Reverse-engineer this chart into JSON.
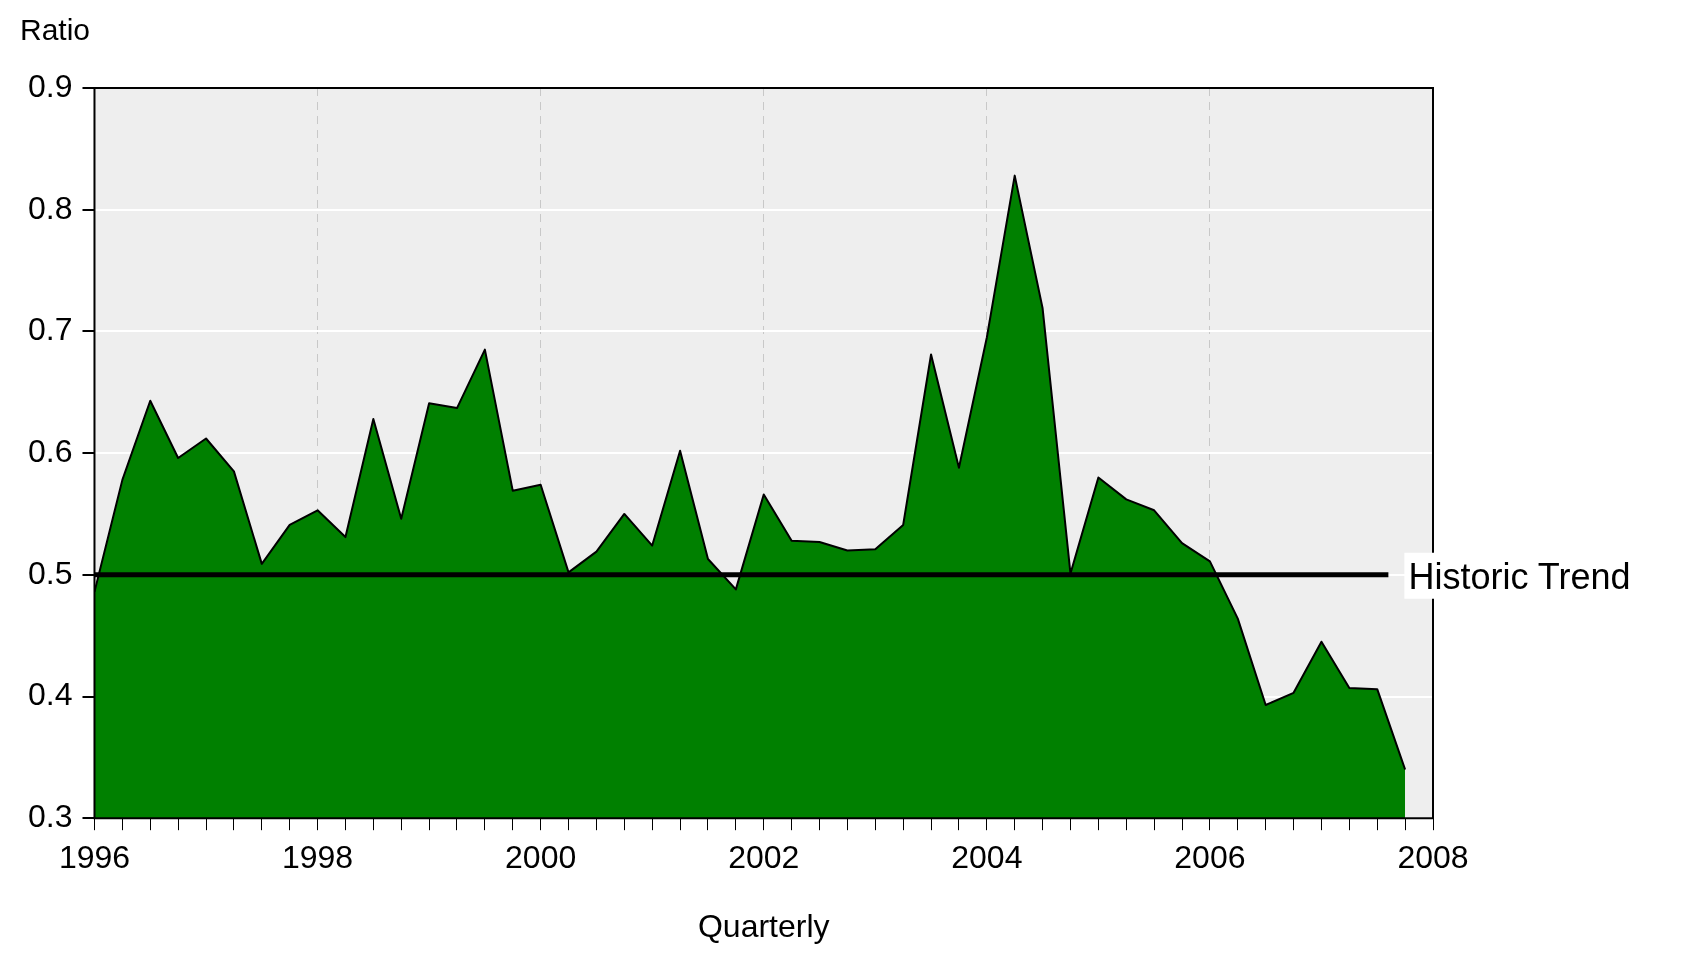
{
  "chart_data": {
    "type": "area",
    "ylabel": "Ratio",
    "xlabel": "Quarterly",
    "x": [
      1996,
      1996.25,
      1996.5,
      1996.75,
      1997,
      1997.25,
      1997.5,
      1997.75,
      1998,
      1998.25,
      1998.5,
      1998.75,
      1999,
      1999.25,
      1999.5,
      1999.75,
      2000,
      2000.25,
      2000.5,
      2000.75,
      2001,
      2001.25,
      2001.5,
      2001.75,
      2002,
      2002.25,
      2002.5,
      2002.75,
      2003,
      2003.25,
      2003.5,
      2003.75,
      2004,
      2004.25,
      2004.5,
      2004.75,
      2005,
      2005.25,
      2005.5,
      2005.75,
      2006,
      2006.25,
      2006.5,
      2006.75,
      2007,
      2007.25,
      2007.5,
      2007.75
    ],
    "series": [
      {
        "color": "#008000",
        "values": [
          0.486,
          0.578,
          0.643,
          0.596,
          0.612,
          0.585,
          0.509,
          0.541,
          0.553,
          0.531,
          0.628,
          0.546,
          0.641,
          0.637,
          0.685,
          0.569,
          0.574,
          0.502,
          0.519,
          0.55,
          0.524,
          0.602,
          0.513,
          0.488,
          0.566,
          0.528,
          0.527,
          0.52,
          0.521,
          0.541,
          0.681,
          0.588,
          0.695,
          0.828,
          0.719,
          0.501,
          0.58,
          0.562,
          0.553,
          0.526,
          0.511,
          0.464,
          0.393,
          0.403,
          0.445,
          0.407,
          0.406,
          0.34
        ]
      },
      {
        "type": "line",
        "name": "Historic Trend",
        "color": "#000000",
        "x": [
          1996,
          2007.6
        ],
        "values": [
          0.5,
          0.5
        ]
      }
    ],
    "xlim": [
      1996,
      2008
    ],
    "xticks": [
      1996,
      {
        "value": 1996.25,
        "label": null
      },
      {
        "value": 1996.5,
        "label": null
      },
      {
        "value": 1996.75,
        "label": null
      },
      {
        "value": 1997,
        "label": null
      },
      {
        "value": 1997.25,
        "label": null
      },
      {
        "value": 1997.5,
        "label": null
      },
      {
        "value": 1997.75,
        "label": null
      },
      1998,
      {
        "value": 1998.25,
        "label": null
      },
      {
        "value": 1998.5,
        "label": null
      },
      {
        "value": 1998.75,
        "label": null
      },
      {
        "value": 1999,
        "label": null
      },
      {
        "value": 1999.25,
        "label": null
      },
      {
        "value": 1999.5,
        "label": null
      },
      {
        "value": 1999.75,
        "label": null
      },
      2000,
      {
        "value": 2000.25,
        "label": null
      },
      {
        "value": 2000.5,
        "label": null
      },
      {
        "value": 2000.75,
        "label": null
      },
      {
        "value": 2001,
        "label": null
      },
      {
        "value": 2001.25,
        "label": null
      },
      {
        "value": 2001.5,
        "label": null
      },
      {
        "value": 2001.75,
        "label": null
      },
      2002,
      {
        "value": 2002.25,
        "label": null
      },
      {
        "value": 2002.5,
        "label": null
      },
      {
        "value": 2002.75,
        "label": null
      },
      {
        "value": 2003,
        "label": null
      },
      {
        "value": 2003.25,
        "label": null
      },
      {
        "value": 2003.5,
        "label": null
      },
      {
        "value": 2003.75,
        "label": null
      },
      2004,
      {
        "value": 2004.25,
        "label": null
      },
      {
        "value": 2004.5,
        "label": null
      },
      {
        "value": 2004.75,
        "label": null
      },
      {
        "value": 2005,
        "label": null
      },
      {
        "value": 2005.25,
        "label": null
      },
      {
        "value": 2005.5,
        "label": null
      },
      {
        "value": 2005.75,
        "label": null
      },
      2006,
      {
        "value": 2006.25,
        "label": null
      },
      {
        "value": 2006.5,
        "label": null
      },
      {
        "value": 2006.75,
        "label": null
      },
      {
        "value": 2007,
        "label": null
      },
      {
        "value": 2007.25,
        "label": null
      },
      {
        "value": 2007.5,
        "label": null
      },
      {
        "value": 2007.75,
        "label": null
      },
      2008
    ],
    "ylim": [
      0.3,
      0.9
    ],
    "yticks": [
      0.3,
      0.4,
      0.5,
      0.6,
      0.7,
      0.8,
      0.9
    ],
    "grid": true,
    "legend": false
  }
}
